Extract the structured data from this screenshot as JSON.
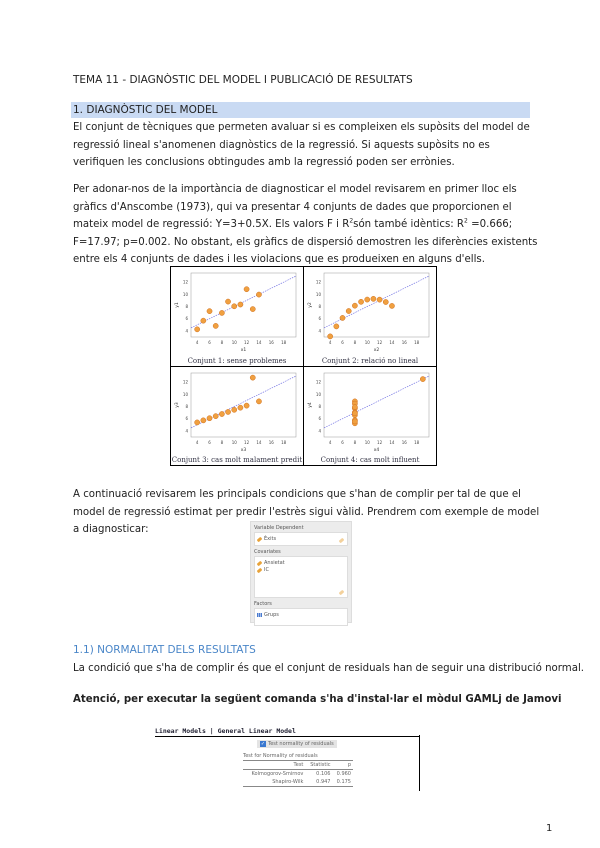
{
  "title": "TEMA 11 - DIAGNÒSTIC DEL MODEL I PUBLICACIÓ DE RESULTATS",
  "section1": "1. DIAGNÒSTIC DEL MODEL",
  "para1": "El conjunt de tècniques que permeten avaluar si es compleixen els supòsits del model de regressió lineal s'anomenen diagnòstics de la regressió. Si aquests supòsits no es verifiquen les conclusions obtingudes amb la regressió poden ser errònies.",
  "para2a": "Per adonar-nos de la importància de diagnosticar el model revisarem en primer lloc els gràfics d'Anscombe (1973), qui va presentar 4 conjunts de dades que proporcionen el mateix model de regressió: Y=3+0.5X. Els valors F i R",
  "para2b": "són també idèntics: R",
  "para2c": " =0.666; F=17.97; p=0.002. No obstant, els gràfics de dispersió demostren les diferències existents entre els 4 conjunts de dades i les violacions que es produeixen en alguns d'ells.",
  "sup2": "2",
  "figure": {
    "point_color": "#f0a040",
    "line_color": "#6060e0",
    "panels": [
      {
        "caption": "Conjunt 1: sense problemes",
        "xlabel": "x1",
        "ylabel": "y1",
        "x": [
          10,
          8,
          13,
          9,
          11,
          14,
          6,
          4,
          12,
          7,
          5
        ],
        "y": [
          8.04,
          6.95,
          7.58,
          8.81,
          8.33,
          9.96,
          7.24,
          4.26,
          10.84,
          4.82,
          5.68
        ]
      },
      {
        "caption": "Conjunt 2: relació no lineal",
        "xlabel": "x2",
        "ylabel": "y2",
        "x": [
          10,
          8,
          13,
          9,
          11,
          14,
          6,
          4,
          12,
          7,
          5
        ],
        "y": [
          9.14,
          8.14,
          8.74,
          8.77,
          9.26,
          8.1,
          6.13,
          3.1,
          9.13,
          7.26,
          4.74
        ]
      },
      {
        "caption": "Conjunt 3: cas molt malament predit",
        "xlabel": "x3",
        "ylabel": "y3",
        "x": [
          10,
          8,
          13,
          9,
          11,
          14,
          6,
          4,
          12,
          7,
          5
        ],
        "y": [
          7.46,
          6.77,
          12.74,
          7.11,
          7.81,
          8.84,
          6.08,
          5.39,
          8.15,
          6.42,
          5.73
        ]
      },
      {
        "caption": "Conjunt 4: cas molt influent",
        "xlabel": "x4",
        "ylabel": "y4",
        "x": [
          8,
          8,
          8,
          8,
          8,
          8,
          8,
          19,
          8,
          8,
          8
        ],
        "y": [
          6.58,
          5.76,
          7.71,
          8.84,
          8.47,
          7.04,
          5.25,
          12.5,
          5.56,
          7.91,
          6.89
        ]
      }
    ],
    "xticks": [
      4,
      6,
      8,
      10,
      12,
      14,
      16,
      18
    ],
    "yticks": [
      4,
      6,
      8,
      10,
      12
    ]
  },
  "para3": "A continuació revisarem les principals condicions que s'han de complir per tal de que el model de regressió estimat per predir l'estrès sigui vàlid. Prendrem com exemple de model a diagnosticar:",
  "jamovi": {
    "dep_label": "Variable Dependent",
    "dep": "Èxits",
    "cov_label": "Covariates",
    "covs": [
      "Ansietat",
      "IC"
    ],
    "fac_label": "Factors",
    "facs": [
      "Grups"
    ]
  },
  "section11": "1.1) NORMALITAT DELS RESULTATS",
  "para4": "La condició que s'ha de complir és que el conjunt de residuals han de seguir una distribució normal.",
  "warning": "Atenció, per executar la següent comanda s'ha d'instal·lar el mòdul GAMLj de Jamovi",
  "gamlj": {
    "header": "Linear Models | General Linear Model",
    "checkbox": "Test normality of residuals",
    "table_title": "Test for Normality of residuals",
    "cols": [
      "Test",
      "Statistic",
      "p"
    ],
    "rows": [
      [
        "Kolmogorov-Smirnov",
        "0.106",
        "0.960"
      ],
      [
        "Shapiro-Wilk",
        "0.947",
        "0.175"
      ]
    ]
  },
  "page_number": "1"
}
